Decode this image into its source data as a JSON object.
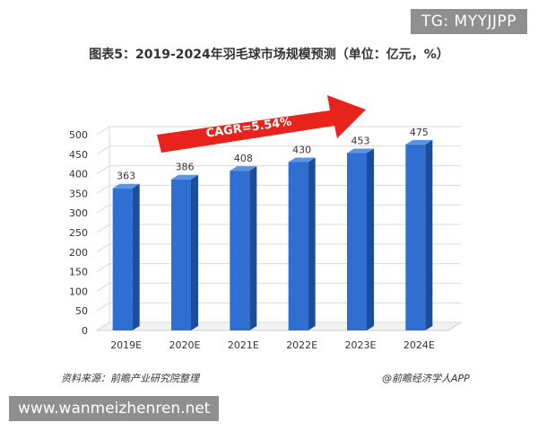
{
  "badges": {
    "top_right": "TG: MYYJJPP",
    "bottom_left": "www.wanmeizhenren.net"
  },
  "chart_data": {
    "type": "bar",
    "title": "图表5：2019-2024年羽毛球市场规模预测（单位：亿元，%）",
    "categories": [
      "2019E",
      "2020E",
      "2021E",
      "2022E",
      "2023E",
      "2024E"
    ],
    "values": [
      363,
      386,
      408,
      430,
      453,
      475
    ],
    "data_labels": [
      "363",
      "386",
      "408",
      "430",
      "453",
      "475"
    ],
    "ylim": [
      0,
      500
    ],
    "yticks": [
      0,
      50,
      100,
      150,
      200,
      250,
      300,
      350,
      400,
      450,
      500
    ],
    "grid": true,
    "annotation": "CAGR=5.54%",
    "colors": {
      "bar_front": "#2f6fd1",
      "bar_side": "#1c4c9c",
      "bar_top": "#5d93e3",
      "arrow": "#e8231b",
      "grid": "#d9d9d9"
    }
  },
  "footer": {
    "source": "资料来源：前瞻产业研究院整理",
    "credit": "@前瞻经济学人APP"
  }
}
